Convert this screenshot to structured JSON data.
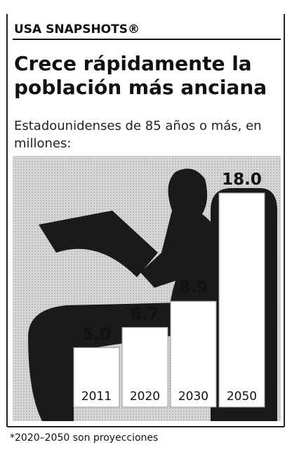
{
  "header": "USA SNAPSHOTS®",
  "chart_data": {
    "type": "bar",
    "title": "Crece rápidamente la población más anciana",
    "subtitle": "Estadounidenses de 85 años o más, en millones:",
    "categories": [
      "2011",
      "2020",
      "2030",
      "2050"
    ],
    "values": [
      5.0,
      6.7,
      8.9,
      18.0
    ],
    "value_labels": [
      "5.0",
      "6.7",
      "8.9",
      "18.0"
    ],
    "color": "#ffffff",
    "footnote": "*2020–2050 son proyecciones"
  }
}
